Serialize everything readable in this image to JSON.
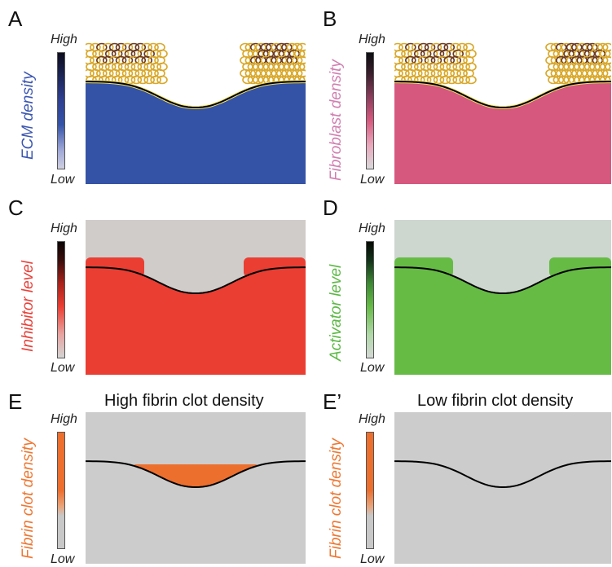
{
  "panels": [
    {
      "id": "A",
      "letter": "A",
      "label": "ECM density",
      "label_color": "#3a55b0",
      "fill": "#3553a6",
      "bg": "#ffffff",
      "cbar": "ecm",
      "cells": true
    },
    {
      "id": "B",
      "letter": "B",
      "label": "Fibroblast density",
      "label_color": "#d07fb0",
      "fill": "#d6587f",
      "bg": "#ffffff",
      "cbar": "fib",
      "cells": true
    },
    {
      "id": "C",
      "letter": "C",
      "label": "Inhibitor level",
      "label_color": "#e8413a",
      "fill": "#ea3e33",
      "bg": "#d0ccca",
      "cbar": "inh",
      "cells": false
    },
    {
      "id": "D",
      "letter": "D",
      "label": "Activator level",
      "label_color": "#5cb845",
      "fill": "#66bb45",
      "bg": "#cdd6cf",
      "cbar": "act",
      "cells": false
    },
    {
      "id": "E",
      "letter": "E",
      "label": "Fibrin clot density",
      "label_color": "#ee7733",
      "title": "High fibrin clot density",
      "fill": "#ec6f2e",
      "bg": "#cccccc",
      "cbar": "fibrin",
      "cells": false
    },
    {
      "id": "E2",
      "letter": "E’",
      "label": "Fibrin clot density",
      "label_color": "#ee7733",
      "title": "Low fibrin clot density",
      "fill": "#cccccc",
      "bg": "#cccccc",
      "cbar": "fibrin",
      "cells": false
    }
  ],
  "legend": {
    "high": "High",
    "low": "Low"
  },
  "colors": {
    "outline": "#000000",
    "cell_yellow": "#d9a82a",
    "cell_brown": "#6b3a1e"
  }
}
